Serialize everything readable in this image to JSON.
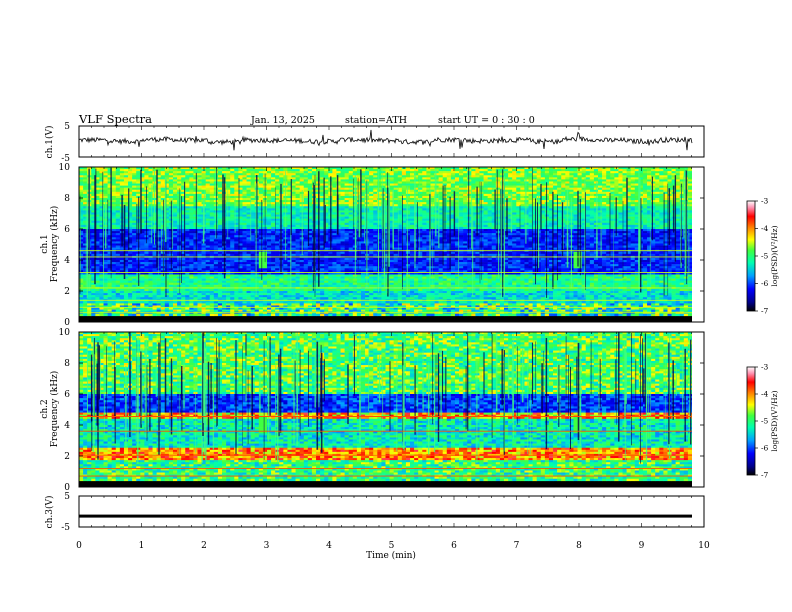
{
  "header": {
    "title": "VLF  Spectra",
    "date": "Jan.  13,  2025",
    "station": "station=ATH",
    "start": "start  UT  =    0  : 30 : 0"
  },
  "chart_data": [
    {
      "type": "line",
      "panel": "ch1-waveform",
      "ylabel": "ch.1(V)",
      "yticks": [
        "5",
        "-5"
      ],
      "ylim": [
        -5,
        5
      ],
      "xlim": [
        0,
        10
      ],
      "level": 0.2,
      "series": [
        {
          "values": [
            0.5,
            -0.2,
            0.8,
            0.3,
            -0.6,
            0.4,
            0.1,
            -0.3,
            0.6,
            0.2,
            -0.5,
            0.7,
            0.0,
            0.4,
            -0.4,
            0.9,
            0.3,
            -0.2,
            0.5,
            0.1
          ]
        }
      ]
    },
    {
      "type": "heatmap",
      "panel": "ch1-spectrogram",
      "ylabel": "ch.1\nFrequency  (kHz)",
      "yticks": [
        "0",
        "2",
        "4",
        "6",
        "8",
        "10"
      ],
      "ylim": [
        0,
        10
      ],
      "xlim": [
        0,
        10
      ],
      "colorbar": {
        "label": "log(PSD)(V²/Hz)",
        "ticks": [
          "-3",
          "-4",
          "-5",
          "-6",
          "-7"
        ],
        "range": [
          -7,
          -3
        ]
      }
    },
    {
      "type": "heatmap",
      "panel": "ch2-spectrogram",
      "ylabel": "ch.2\nFrequency  (kHz)",
      "yticks": [
        "0",
        "2",
        "4",
        "6",
        "8",
        "10"
      ],
      "ylim": [
        0,
        10
      ],
      "xlim": [
        0,
        10
      ],
      "colorbar": {
        "label": "log(PSD)(V²/Hz)",
        "ticks": [
          "-3",
          "-4",
          "-5",
          "-6",
          "-7"
        ],
        "range": [
          -7,
          -3
        ]
      }
    },
    {
      "type": "line",
      "panel": "ch3-waveform",
      "ylabel": "ch.3(V)",
      "yticks": [
        "5",
        "-5"
      ],
      "ylim": [
        -5,
        5
      ],
      "xlim": [
        0,
        10
      ],
      "level": -1.5
    }
  ],
  "x_axis": {
    "label": "Time  (min)",
    "ticks": [
      "0",
      "1",
      "2",
      "3",
      "4",
      "5",
      "6",
      "7",
      "8",
      "9",
      "10"
    ]
  },
  "colors": {
    "colormap": [
      "#000000",
      "#00008b",
      "#0000ff",
      "#0060ff",
      "#00c8ff",
      "#00ffb0",
      "#40ff40",
      "#d0ff00",
      "#ffff00",
      "#ff9000",
      "#ff2000",
      "#ff80a0",
      "#ffffff"
    ]
  }
}
